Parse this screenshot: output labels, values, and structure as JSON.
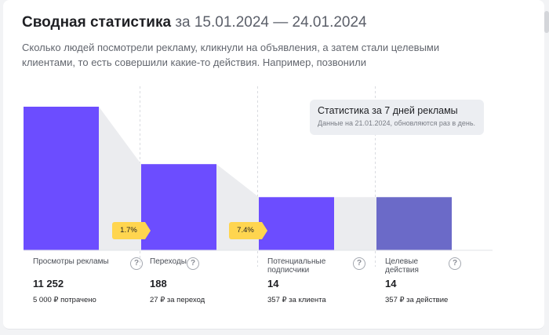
{
  "header": {
    "title": "Сводная статистика",
    "period": "за 15.01.2024 — 24.01.2024",
    "subtitle": "Сколько людей посмотрели рекламу, кликнули на объявления, а затем стали целевыми клиентами, то есть совершили какие-то действия. Например, позвонили"
  },
  "tooltip": {
    "title": "Статистика за 7 дней рекламы",
    "text": "Данные на 21.01.2024, обновляются раз в день."
  },
  "conversions": [
    {
      "label": "1.7%"
    },
    {
      "label": "7.4%"
    }
  ],
  "funnel": {
    "bar_colors": [
      "#6c4dff",
      "#6c4dff",
      "#6c4dff",
      "#6b6ac8"
    ],
    "bar_levels": [
      1.0,
      0.6,
      0.37,
      0.37
    ],
    "connector_color": "#ebecef"
  },
  "metrics": [
    {
      "label": "Просмотры рекламы",
      "value": "11 252",
      "note": "5 000 ₽ потрачено"
    },
    {
      "label": "Переходы",
      "value": "188",
      "note": "27 ₽ за переход"
    },
    {
      "label": "Потенциальные подписчики",
      "value": "14",
      "note": "357 ₽ за клиента"
    },
    {
      "label": "Целевые действия",
      "value": "14",
      "note": "357 ₽ за действие"
    }
  ],
  "icons": {
    "help": "question-icon"
  }
}
